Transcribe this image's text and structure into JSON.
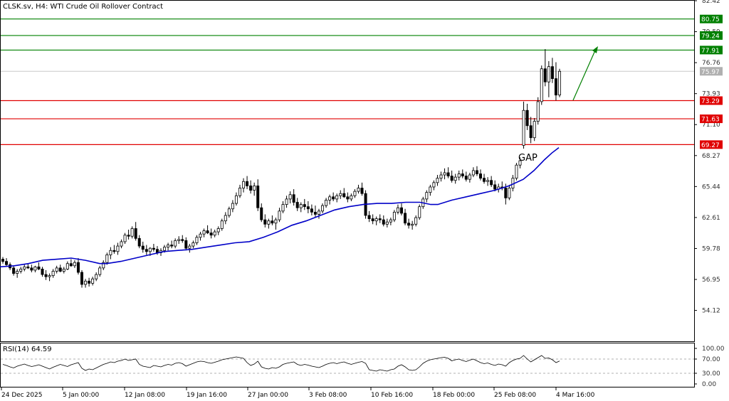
{
  "header": {
    "title": "CLSK.sv, H4:  WTI Crude Oil Rollover Contract"
  },
  "chart_data": {
    "type": "candlestick",
    "price_axis": {
      "ticks": [
        "82.42",
        "79.59",
        "76.76",
        "73.93",
        "71.10",
        "68.27",
        "65.44",
        "62.61",
        "59.78",
        "56.95",
        "54.12"
      ],
      "range": [
        51.3,
        82.42
      ]
    },
    "time_axis": {
      "labels": [
        "24 Dec 2025",
        "5 Jan 00:00",
        "12 Jan 08:00",
        "19 Jan 16:00",
        "27 Jan 00:00",
        "3 Feb 08:00",
        "10 Feb 16:00",
        "18 Feb 00:00",
        "25 Feb 08:00",
        "4 Mar 16:00"
      ]
    },
    "levels": [
      {
        "label": "80.75",
        "value": 80.75,
        "color": "#008000"
      },
      {
        "label": "79.24",
        "value": 79.24,
        "color": "#008000"
      },
      {
        "label": "77.91",
        "value": 77.91,
        "color": "#008000"
      },
      {
        "label": "73.29",
        "value": 73.29,
        "color": "#e00000"
      },
      {
        "label": "71.63",
        "value": 71.63,
        "color": "#e00000"
      },
      {
        "label": "69.27",
        "value": 69.27,
        "color": "#e00000"
      }
    ],
    "current_price": {
      "label": "75.97",
      "value": 75.97,
      "color": "#b0b0b0"
    },
    "annotation": {
      "text": "GAP"
    },
    "moving_average": {
      "color": "#0000c8",
      "points": [
        [
          0,
          58.1
        ],
        [
          20,
          58.2
        ],
        [
          40,
          58.4
        ],
        [
          60,
          58.7
        ],
        [
          80,
          58.8
        ],
        [
          100,
          58.9
        ],
        [
          120,
          58.7
        ],
        [
          140,
          58.4
        ],
        [
          150,
          58.4
        ],
        [
          170,
          58.6
        ],
        [
          190,
          58.9
        ],
        [
          210,
          59.2
        ],
        [
          230,
          59.5
        ],
        [
          250,
          59.6
        ],
        [
          270,
          59.7
        ],
        [
          290,
          59.9
        ],
        [
          310,
          60.1
        ],
        [
          330,
          60.3
        ],
        [
          350,
          60.4
        ],
        [
          370,
          60.8
        ],
        [
          390,
          61.3
        ],
        [
          410,
          61.9
        ],
        [
          430,
          62.3
        ],
        [
          450,
          62.8
        ],
        [
          470,
          63.3
        ],
        [
          490,
          63.6
        ],
        [
          510,
          63.8
        ],
        [
          530,
          63.9
        ],
        [
          550,
          63.9
        ],
        [
          570,
          64.0
        ],
        [
          590,
          64.0
        ],
        [
          605,
          63.8
        ],
        [
          615,
          63.8
        ],
        [
          635,
          64.2
        ],
        [
          655,
          64.5
        ],
        [
          675,
          64.8
        ],
        [
          695,
          65.1
        ],
        [
          715,
          65.5
        ],
        [
          735,
          66.1
        ],
        [
          750,
          66.9
        ],
        [
          765,
          67.9
        ],
        [
          775,
          68.5
        ],
        [
          785,
          69.0
        ]
      ]
    },
    "candles_ohlc": [
      [
        58.8,
        59.0,
        58.4,
        58.6
      ],
      [
        58.6,
        58.9,
        58.2,
        58.3
      ],
      [
        58.3,
        58.5,
        57.8,
        58.0
      ],
      [
        58.0,
        58.2,
        57.3,
        57.5
      ],
      [
        57.5,
        57.9,
        57.1,
        57.7
      ],
      [
        57.7,
        58.1,
        57.5,
        57.9
      ],
      [
        57.9,
        58.3,
        57.7,
        58.1
      ],
      [
        58.1,
        58.4,
        57.9,
        58.0
      ],
      [
        58.0,
        58.3,
        57.6,
        57.8
      ],
      [
        57.8,
        58.2,
        57.6,
        58.1
      ],
      [
        58.1,
        58.5,
        57.8,
        57.9
      ],
      [
        57.9,
        58.1,
        57.2,
        57.4
      ],
      [
        57.4,
        57.8,
        56.9,
        57.2
      ],
      [
        57.2,
        57.5,
        56.8,
        57.3
      ],
      [
        57.3,
        57.9,
        57.1,
        57.7
      ],
      [
        57.7,
        58.2,
        57.5,
        58.0
      ],
      [
        58.0,
        58.3,
        57.6,
        57.7
      ],
      [
        57.7,
        58.1,
        57.5,
        57.9
      ],
      [
        57.9,
        58.6,
        57.8,
        58.4
      ],
      [
        58.4,
        58.8,
        58.1,
        58.2
      ],
      [
        58.2,
        58.7,
        58.0,
        58.5
      ],
      [
        58.5,
        58.9,
        57.4,
        57.6
      ],
      [
        57.6,
        57.8,
        56.2,
        56.5
      ],
      [
        56.5,
        57.0,
        56.2,
        56.8
      ],
      [
        56.8,
        57.1,
        56.3,
        56.6
      ],
      [
        56.6,
        57.2,
        56.4,
        57.0
      ],
      [
        57.0,
        57.6,
        56.8,
        57.4
      ],
      [
        57.4,
        58.2,
        57.2,
        58.0
      ],
      [
        58.0,
        58.7,
        57.8,
        58.5
      ],
      [
        58.5,
        59.4,
        58.3,
        59.2
      ],
      [
        59.2,
        59.9,
        58.8,
        59.6
      ],
      [
        59.6,
        60.1,
        59.3,
        59.5
      ],
      [
        59.5,
        60.3,
        59.2,
        60.0
      ],
      [
        60.0,
        60.6,
        59.8,
        60.4
      ],
      [
        60.4,
        61.2,
        60.2,
        61.0
      ],
      [
        61.0,
        61.5,
        60.6,
        60.9
      ],
      [
        60.9,
        61.8,
        60.7,
        61.6
      ],
      [
        61.6,
        62.2,
        60.5,
        60.7
      ],
      [
        60.7,
        61.0,
        59.8,
        60.0
      ],
      [
        60.0,
        60.4,
        59.4,
        59.7
      ],
      [
        59.7,
        60.1,
        59.2,
        59.5
      ],
      [
        59.5,
        59.9,
        59.1,
        59.8
      ],
      [
        59.8,
        60.2,
        59.5,
        59.7
      ],
      [
        59.7,
        60.0,
        59.2,
        59.4
      ],
      [
        59.4,
        59.8,
        59.1,
        59.6
      ],
      [
        59.6,
        60.1,
        59.4,
        59.9
      ],
      [
        59.9,
        60.3,
        59.6,
        60.1
      ],
      [
        60.1,
        60.5,
        59.8,
        60.0
      ],
      [
        60.0,
        60.7,
        59.8,
        60.5
      ],
      [
        60.5,
        60.9,
        60.2,
        60.6
      ],
      [
        60.6,
        61.0,
        60.3,
        60.5
      ],
      [
        60.5,
        60.8,
        59.6,
        59.8
      ],
      [
        59.8,
        60.2,
        59.4,
        60.0
      ],
      [
        60.0,
        60.5,
        59.8,
        60.3
      ],
      [
        60.3,
        61.0,
        60.1,
        60.8
      ],
      [
        60.8,
        61.3,
        60.5,
        61.1
      ],
      [
        61.1,
        61.6,
        60.8,
        61.4
      ],
      [
        61.4,
        61.9,
        61.1,
        61.2
      ],
      [
        61.2,
        61.6,
        60.7,
        61.0
      ],
      [
        61.0,
        61.5,
        60.8,
        61.3
      ],
      [
        61.3,
        61.8,
        61.0,
        61.6
      ],
      [
        61.6,
        62.5,
        61.4,
        62.3
      ],
      [
        62.3,
        63.1,
        62.0,
        62.8
      ],
      [
        62.8,
        63.6,
        62.6,
        63.4
      ],
      [
        63.4,
        64.2,
        63.1,
        63.9
      ],
      [
        63.9,
        64.9,
        63.7,
        64.6
      ],
      [
        64.6,
        65.6,
        64.4,
        65.3
      ],
      [
        65.3,
        66.2,
        64.9,
        65.9
      ],
      [
        65.9,
        66.4,
        65.2,
        65.5
      ],
      [
        65.5,
        66.0,
        64.8,
        65.1
      ],
      [
        65.1,
        65.8,
        64.6,
        65.5
      ],
      [
        65.5,
        66.1,
        63.2,
        63.5
      ],
      [
        63.5,
        63.9,
        62.2,
        62.4
      ],
      [
        62.4,
        62.9,
        61.7,
        62.0
      ],
      [
        62.0,
        62.5,
        61.6,
        62.3
      ],
      [
        62.3,
        62.8,
        61.9,
        62.1
      ],
      [
        62.1,
        62.6,
        61.5,
        62.4
      ],
      [
        62.4,
        63.5,
        62.2,
        63.2
      ],
      [
        63.2,
        64.1,
        63.0,
        63.8
      ],
      [
        63.8,
        64.6,
        63.5,
        64.3
      ],
      [
        64.3,
        65.0,
        63.9,
        64.7
      ],
      [
        64.7,
        65.2,
        63.7,
        64.0
      ],
      [
        64.0,
        64.4,
        63.2,
        63.5
      ],
      [
        63.5,
        64.0,
        63.1,
        63.8
      ],
      [
        63.8,
        64.3,
        63.3,
        63.6
      ],
      [
        63.6,
        64.1,
        63.0,
        63.4
      ],
      [
        63.4,
        63.8,
        62.8,
        63.1
      ],
      [
        63.1,
        63.7,
        62.6,
        62.9
      ],
      [
        62.9,
        63.4,
        62.5,
        63.2
      ],
      [
        63.2,
        63.9,
        63.0,
        63.7
      ],
      [
        63.7,
        64.4,
        63.5,
        64.2
      ],
      [
        64.2,
        64.7,
        63.8,
        64.5
      ],
      [
        64.5,
        64.9,
        64.1,
        64.3
      ],
      [
        64.3,
        64.8,
        64.0,
        64.6
      ],
      [
        64.6,
        65.1,
        64.3,
        64.8
      ],
      [
        64.8,
        65.3,
        64.4,
        64.5
      ],
      [
        64.5,
        64.9,
        64.0,
        64.3
      ],
      [
        64.3,
        64.8,
        64.1,
        64.6
      ],
      [
        64.6,
        65.2,
        64.4,
        65.0
      ],
      [
        65.0,
        65.6,
        64.8,
        65.3
      ],
      [
        65.3,
        65.8,
        64.6,
        64.8
      ],
      [
        64.8,
        65.1,
        62.5,
        62.8
      ],
      [
        62.8,
        63.2,
        62.2,
        62.5
      ],
      [
        62.5,
        62.9,
        62.0,
        62.3
      ],
      [
        62.3,
        62.7,
        61.9,
        62.5
      ],
      [
        62.5,
        62.9,
        62.1,
        62.4
      ],
      [
        62.4,
        62.8,
        61.8,
        62.0
      ],
      [
        62.0,
        62.5,
        61.7,
        62.2
      ],
      [
        62.2,
        62.6,
        61.9,
        62.4
      ],
      [
        62.4,
        63.3,
        62.2,
        63.1
      ],
      [
        63.1,
        63.8,
        62.9,
        63.5
      ],
      [
        63.5,
        63.9,
        62.8,
        63.0
      ],
      [
        63.0,
        63.4,
        61.9,
        62.1
      ],
      [
        62.1,
        62.5,
        61.6,
        61.9
      ],
      [
        61.9,
        62.3,
        61.5,
        62.0
      ],
      [
        62.0,
        62.8,
        61.8,
        62.6
      ],
      [
        62.6,
        63.8,
        62.4,
        63.6
      ],
      [
        63.6,
        64.5,
        63.4,
        64.3
      ],
      [
        64.3,
        65.1,
        64.0,
        64.9
      ],
      [
        64.9,
        65.6,
        64.6,
        65.4
      ],
      [
        65.4,
        66.0,
        65.1,
        65.8
      ],
      [
        65.8,
        66.5,
        65.5,
        66.2
      ],
      [
        66.2,
        66.8,
        65.9,
        66.5
      ],
      [
        66.5,
        67.1,
        66.1,
        66.7
      ],
      [
        66.7,
        67.2,
        66.2,
        66.4
      ],
      [
        66.4,
        66.9,
        65.8,
        66.0
      ],
      [
        66.0,
        66.6,
        65.7,
        66.3
      ],
      [
        66.3,
        66.9,
        66.0,
        66.6
      ],
      [
        66.6,
        67.0,
        66.2,
        66.4
      ],
      [
        66.4,
        66.8,
        65.9,
        66.1
      ],
      [
        66.1,
        66.7,
        65.8,
        66.5
      ],
      [
        66.5,
        67.2,
        66.3,
        66.9
      ],
      [
        66.9,
        67.3,
        66.4,
        66.6
      ],
      [
        66.6,
        67.0,
        66.0,
        66.2
      ],
      [
        66.2,
        66.6,
        65.7,
        65.9
      ],
      [
        65.9,
        66.3,
        65.5,
        66.0
      ],
      [
        66.0,
        66.4,
        65.4,
        65.6
      ],
      [
        65.6,
        66.0,
        65.0,
        65.2
      ],
      [
        65.2,
        65.7,
        64.9,
        65.4
      ],
      [
        65.4,
        65.9,
        65.1,
        65.3
      ],
      [
        65.3,
        65.7,
        63.8,
        64.4
      ],
      [
        64.4,
        65.6,
        64.2,
        65.3
      ],
      [
        65.3,
        66.5,
        65.0,
        66.2
      ],
      [
        66.2,
        67.6,
        66.0,
        67.4
      ],
      [
        67.4,
        68.1,
        67.1,
        67.8
      ],
      [
        69.2,
        73.2,
        68.9,
        72.4
      ],
      [
        72.4,
        73.0,
        70.6,
        71.0
      ],
      [
        71.0,
        71.8,
        69.4,
        69.9
      ],
      [
        69.9,
        71.7,
        69.6,
        71.4
      ],
      [
        71.4,
        73.6,
        71.1,
        73.2
      ],
      [
        73.2,
        76.5,
        72.9,
        76.2
      ],
      [
        76.2,
        78.0,
        74.6,
        75.0
      ],
      [
        75.0,
        76.9,
        73.6,
        76.4
      ],
      [
        76.4,
        77.2,
        74.9,
        75.3
      ],
      [
        75.3,
        76.8,
        73.3,
        73.8
      ],
      [
        73.8,
        76.2,
        73.6,
        75.97
      ]
    ],
    "rsi": {
      "label": "RSI(14) 64.59",
      "ticks": [
        "100.00",
        "70.00",
        "30.00",
        "0.00"
      ],
      "range": [
        0,
        100
      ],
      "levels": [
        70,
        30
      ],
      "values": [
        55,
        52,
        48,
        45,
        50,
        53,
        56,
        52,
        49,
        51,
        54,
        50,
        46,
        42,
        47,
        51,
        55,
        52,
        49,
        54,
        57,
        60,
        44,
        38,
        42,
        40,
        45,
        50,
        55,
        58,
        62,
        60,
        64,
        66,
        70,
        66,
        68,
        70,
        55,
        50,
        48,
        46,
        52,
        50,
        48,
        52,
        55,
        53,
        58,
        60,
        57,
        50,
        54,
        58,
        62,
        64,
        63,
        60,
        58,
        61,
        64,
        68,
        70,
        72,
        74,
        76,
        74,
        72,
        60,
        52,
        56,
        64,
        48,
        44,
        42,
        46,
        44,
        48,
        55,
        58,
        60,
        62,
        55,
        52,
        55,
        53,
        50,
        48,
        46,
        50,
        55,
        58,
        60,
        57,
        60,
        62,
        58,
        55,
        58,
        61,
        63,
        58,
        40,
        38,
        36,
        40,
        38,
        36,
        40,
        42,
        50,
        54,
        48,
        40,
        38,
        40,
        48,
        58,
        64,
        68,
        70,
        72,
        74,
        75,
        72,
        65,
        68,
        70,
        66,
        63,
        67,
        70,
        65,
        60,
        57,
        59,
        55,
        52,
        56,
        54,
        50,
        60,
        66,
        70,
        72,
        80,
        70,
        62,
        68,
        74,
        80,
        72,
        73,
        68,
        60,
        64.59
      ]
    }
  }
}
